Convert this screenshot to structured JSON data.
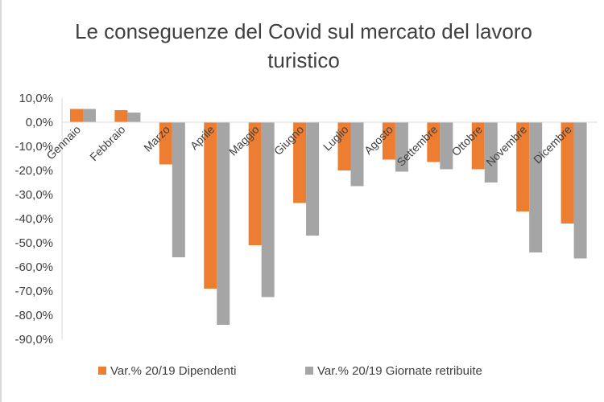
{
  "chart_data": {
    "type": "bar",
    "title_lines": [
      "Le conseguenze  del Covid sul mercato del lavoro",
      "turistico"
    ],
    "categories": [
      "Gennaio",
      "Febbraio",
      "Marzo",
      "Aprile",
      "Maggio",
      "Giugno",
      "Luglio",
      "Agosto",
      "Settembre",
      "Ottobre",
      "Novembre",
      "Dicembre"
    ],
    "series": [
      {
        "name": "Var.% 20/19 Dipendenti",
        "color": "#ed7d31",
        "values": [
          5.5,
          5.0,
          -17.5,
          -69.0,
          -51.0,
          -33.5,
          -20.0,
          -15.5,
          -16.5,
          -19.5,
          -37.0,
          -42.0
        ]
      },
      {
        "name": "Var.% 20/19 Giornate retribuite",
        "color": "#a5a5a5",
        "values": [
          5.5,
          4.0,
          -56.0,
          -84.0,
          -72.5,
          -47.0,
          -26.5,
          -20.5,
          -19.5,
          -25.0,
          -54.0,
          -56.5
        ]
      }
    ],
    "ylim": [
      -90,
      10
    ],
    "yticks": [
      10,
      0,
      -10,
      -20,
      -30,
      -40,
      -50,
      -60,
      -70,
      -80,
      -90
    ],
    "ytick_labels": [
      "10,0%",
      "0,0%",
      "-10,0%",
      "-20,0%",
      "-30,0%",
      "-40,0%",
      "-50,0%",
      "-60,0%",
      "-70,0%",
      "-80,0%",
      "-90,0%"
    ],
    "xlabel": "",
    "ylabel": "",
    "grid": false,
    "legend_position": "bottom",
    "axis_color": "#d9d9d9",
    "text_color": "#404040"
  }
}
